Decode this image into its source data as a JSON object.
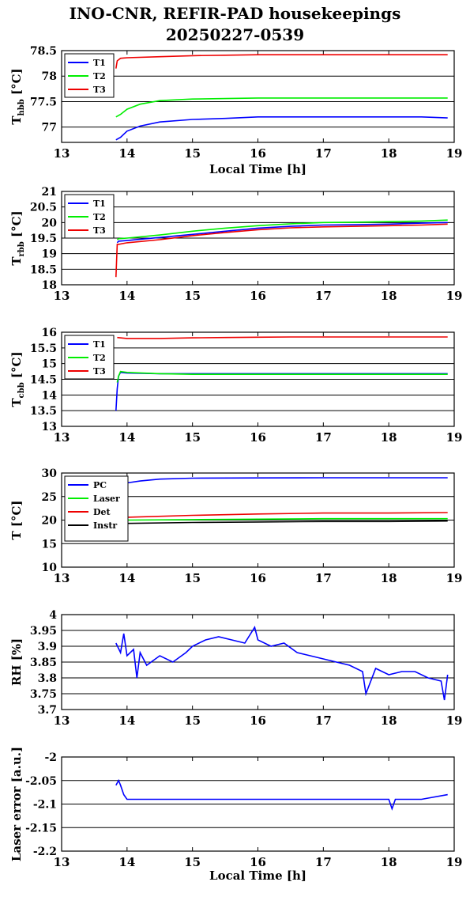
{
  "title_line1": "INO-CNR, REFIR-PAD housekeepings",
  "title_line2": "20250227-0539",
  "colors": {
    "blue": "#0000ff",
    "green": "#00ee00",
    "red": "#ee0000",
    "black": "#000000"
  },
  "chart_data": [
    {
      "type": "line",
      "ylabel": "T_hbb [°C]",
      "ylabel_main": "T",
      "ylabel_sub": "hbb",
      "ylabel_tail": " [°C]",
      "xlabel": "Local Time [h]",
      "xlim": [
        13,
        19
      ],
      "ylim": [
        76.7,
        78.5
      ],
      "xticks": [
        13,
        14,
        15,
        16,
        17,
        18,
        19
      ],
      "xtick_labels": [
        "13",
        "14",
        "15",
        "16",
        "17",
        "18",
        "19"
      ],
      "yticks": [
        77,
        77.5,
        78,
        78.5
      ],
      "ytick_labels": [
        "77",
        "77.5",
        "78",
        "78.5"
      ],
      "grid": true,
      "legend": "top-left",
      "series": [
        {
          "name": "T1",
          "color": "#0000ff",
          "x": [
            13.83,
            13.9,
            14.0,
            14.2,
            14.5,
            15.0,
            15.5,
            16.0,
            16.5,
            17.0,
            17.5,
            18.0,
            18.5,
            18.9
          ],
          "y": [
            76.75,
            76.8,
            76.92,
            77.02,
            77.1,
            77.15,
            77.17,
            77.2,
            77.2,
            77.2,
            77.2,
            77.2,
            77.2,
            77.18
          ]
        },
        {
          "name": "T2",
          "color": "#00ee00",
          "x": [
            13.83,
            13.9,
            14.0,
            14.2,
            14.5,
            15.0,
            15.5,
            16.0,
            16.5,
            17.0,
            17.5,
            18.0,
            18.5,
            18.9
          ],
          "y": [
            77.2,
            77.25,
            77.35,
            77.45,
            77.52,
            77.55,
            77.56,
            77.57,
            77.57,
            77.57,
            77.57,
            77.57,
            77.57,
            77.57
          ]
        },
        {
          "name": "T3",
          "color": "#ee0000",
          "x": [
            13.83,
            13.85,
            13.9,
            14.0,
            14.5,
            15.0,
            15.5,
            16.0,
            16.5,
            17.0,
            17.5,
            18.0,
            18.5,
            18.9
          ],
          "y": [
            78.15,
            78.3,
            78.35,
            78.36,
            78.38,
            78.4,
            78.41,
            78.42,
            78.42,
            78.42,
            78.42,
            78.42,
            78.42,
            78.42
          ]
        }
      ]
    },
    {
      "type": "line",
      "ylabel": "T_rbb [°C]",
      "ylabel_main": "T",
      "ylabel_sub": "rbb",
      "ylabel_tail": " [°C]",
      "xlabel": "",
      "xlim": [
        13,
        19
      ],
      "ylim": [
        18,
        21
      ],
      "xticks": [
        13,
        14,
        15,
        16,
        17,
        18,
        19
      ],
      "xtick_labels": [
        "13",
        "14",
        "15",
        "16",
        "17",
        "18",
        "19"
      ],
      "yticks": [
        18,
        18.5,
        19,
        19.5,
        20,
        20.5,
        21
      ],
      "ytick_labels": [
        "18",
        "18.5",
        "19",
        "19.5",
        "20",
        "20.5",
        "21"
      ],
      "grid": true,
      "legend": "top-left",
      "series": [
        {
          "name": "T1",
          "color": "#0000ff",
          "x": [
            13.85,
            13.87,
            14.0,
            14.5,
            15.0,
            15.5,
            16.0,
            16.5,
            17.0,
            17.5,
            18.0,
            18.5,
            18.9
          ],
          "y": [
            19.35,
            19.4,
            19.42,
            19.52,
            19.62,
            19.72,
            19.82,
            19.88,
            19.92,
            19.93,
            19.95,
            19.98,
            20.0
          ]
        },
        {
          "name": "T2",
          "color": "#00ee00",
          "x": [
            13.85,
            13.87,
            14.0,
            14.5,
            15.0,
            15.5,
            16.0,
            16.5,
            17.0,
            17.5,
            18.0,
            18.5,
            18.9
          ],
          "y": [
            19.45,
            19.48,
            19.5,
            19.6,
            19.72,
            19.82,
            19.9,
            19.96,
            20.0,
            20.01,
            20.03,
            20.05,
            20.08
          ]
        },
        {
          "name": "T3",
          "color": "#ee0000",
          "x": [
            13.83,
            13.85,
            13.87,
            14.0,
            14.5,
            15.0,
            15.5,
            16.0,
            16.5,
            17.0,
            17.5,
            18.0,
            18.5,
            18.9
          ],
          "y": [
            18.25,
            19.3,
            19.3,
            19.35,
            19.45,
            19.58,
            19.68,
            19.77,
            19.83,
            19.86,
            19.88,
            19.9,
            19.92,
            19.95
          ]
        }
      ]
    },
    {
      "type": "line",
      "ylabel": "T_cbb [°C]",
      "ylabel_main": "T",
      "ylabel_sub": "cbb",
      "ylabel_tail": " [°C]",
      "xlabel": "",
      "xlim": [
        13,
        19
      ],
      "ylim": [
        13,
        16
      ],
      "xticks": [
        13,
        14,
        15,
        16,
        17,
        18,
        19
      ],
      "xtick_labels": [
        "13",
        "14",
        "15",
        "16",
        "17",
        "18",
        "19"
      ],
      "yticks": [
        13,
        13.5,
        14,
        14.5,
        15,
        15.5,
        16
      ],
      "ytick_labels": [
        "13",
        "13.5",
        "14",
        "14.5",
        "15",
        "15.5",
        "16"
      ],
      "grid": true,
      "legend": "top-left",
      "series": [
        {
          "name": "T1",
          "color": "#0000ff",
          "x": [
            13.83,
            13.85,
            13.87,
            13.9,
            14.0,
            14.5,
            15.0,
            15.5,
            16.0,
            16.5,
            17.0,
            17.5,
            18.0,
            18.5,
            18.9
          ],
          "y": [
            13.5,
            14.2,
            14.6,
            14.72,
            14.7,
            14.68,
            14.68,
            14.68,
            14.68,
            14.68,
            14.68,
            14.68,
            14.68,
            14.68,
            14.68
          ]
        },
        {
          "name": "T2",
          "color": "#00ee00",
          "x": [
            13.85,
            13.87,
            13.9,
            14.0,
            14.5,
            15.0,
            15.5,
            16.0,
            16.5,
            17.0,
            17.5,
            18.0,
            18.5,
            18.9
          ],
          "y": [
            14.4,
            14.6,
            14.75,
            14.72,
            14.68,
            14.66,
            14.66,
            14.66,
            14.66,
            14.66,
            14.66,
            14.66,
            14.66,
            14.66
          ]
        },
        {
          "name": "T3",
          "color": "#ee0000",
          "x": [
            13.85,
            14.0,
            14.5,
            15.0,
            15.5,
            16.0,
            16.5,
            17.0,
            17.5,
            18.0,
            18.5,
            18.9
          ],
          "y": [
            15.83,
            15.8,
            15.8,
            15.82,
            15.83,
            15.84,
            15.85,
            15.85,
            15.85,
            15.85,
            15.85,
            15.85
          ]
        }
      ]
    },
    {
      "type": "line",
      "ylabel": "T [°C]",
      "ylabel_main": "T [°C]",
      "ylabel_sub": "",
      "ylabel_tail": "",
      "xlabel": "",
      "xlim": [
        13,
        19
      ],
      "ylim": [
        10,
        30
      ],
      "xticks": [
        13,
        14,
        15,
        16,
        17,
        18,
        19
      ],
      "xtick_labels": [
        "13",
        "14",
        "15",
        "16",
        "17",
        "18",
        "19"
      ],
      "yticks": [
        10,
        15,
        20,
        25,
        30
      ],
      "ytick_labels": [
        "10",
        "15",
        "20",
        "25",
        "30"
      ],
      "grid": true,
      "legend": "top-left",
      "series": [
        {
          "name": "PC",
          "color": "#0000ff",
          "x": [
            13.83,
            14.0,
            14.2,
            14.5,
            15.0,
            16.0,
            17.0,
            18.0,
            18.9
          ],
          "y": [
            27.4,
            27.9,
            28.3,
            28.7,
            28.9,
            28.95,
            29.0,
            29.0,
            29.0
          ]
        },
        {
          "name": "Laser",
          "color": "#00ee00",
          "x": [
            13.83,
            14.0,
            15.0,
            16.0,
            17.0,
            18.0,
            18.9
          ],
          "y": [
            20.0,
            20.0,
            20.1,
            20.2,
            20.3,
            20.3,
            20.3
          ]
        },
        {
          "name": "Det",
          "color": "#ee0000",
          "x": [
            13.83,
            14.0,
            15.0,
            16.0,
            17.0,
            18.0,
            18.9
          ],
          "y": [
            20.5,
            20.6,
            21.0,
            21.3,
            21.5,
            21.5,
            21.6
          ]
        },
        {
          "name": "Instr",
          "color": "#000000",
          "x": [
            13.83,
            14.0,
            15.0,
            16.0,
            17.0,
            18.0,
            18.9
          ],
          "y": [
            19.3,
            19.3,
            19.5,
            19.6,
            19.7,
            19.7,
            19.8
          ]
        }
      ]
    },
    {
      "type": "line",
      "ylabel": "RH [%]",
      "ylabel_main": "RH [%]",
      "ylabel_sub": "",
      "ylabel_tail": "",
      "xlabel": "",
      "xlim": [
        13,
        19
      ],
      "ylim": [
        3.7,
        4
      ],
      "xticks": [
        13,
        14,
        15,
        16,
        17,
        18,
        19
      ],
      "xtick_labels": [
        "13",
        "14",
        "15",
        "16",
        "17",
        "18",
        "19"
      ],
      "yticks": [
        3.7,
        3.75,
        3.8,
        3.85,
        3.9,
        3.95,
        4
      ],
      "ytick_labels": [
        "3.7",
        "3.75",
        "3.8",
        "3.85",
        "3.9",
        "3.95",
        "4"
      ],
      "grid": true,
      "legend": "none",
      "series": [
        {
          "name": "",
          "color": "#0000ff",
          "x": [
            13.83,
            13.9,
            13.95,
            14.0,
            14.1,
            14.15,
            14.2,
            14.3,
            14.5,
            14.7,
            14.9,
            15.0,
            15.2,
            15.4,
            15.6,
            15.8,
            15.95,
            16.0,
            16.2,
            16.4,
            16.6,
            16.8,
            17.0,
            17.2,
            17.4,
            17.6,
            17.65,
            17.8,
            18.0,
            18.2,
            18.4,
            18.6,
            18.8,
            18.85,
            18.9
          ],
          "y": [
            3.91,
            3.88,
            3.94,
            3.87,
            3.89,
            3.8,
            3.88,
            3.84,
            3.87,
            3.85,
            3.88,
            3.9,
            3.92,
            3.93,
            3.92,
            3.91,
            3.96,
            3.92,
            3.9,
            3.91,
            3.88,
            3.87,
            3.86,
            3.85,
            3.84,
            3.82,
            3.75,
            3.83,
            3.81,
            3.82,
            3.82,
            3.8,
            3.79,
            3.73,
            3.81
          ]
        }
      ]
    },
    {
      "type": "line",
      "ylabel": "Laser error [a.u.]",
      "ylabel_main": "Laser error [a.u.]",
      "ylabel_sub": "",
      "ylabel_tail": "",
      "xlabel": "Local Time [h]",
      "xlim": [
        13,
        19
      ],
      "ylim": [
        -2.2,
        -2
      ],
      "xticks": [
        13,
        14,
        15,
        16,
        17,
        18,
        19
      ],
      "xtick_labels": [
        "13",
        "14",
        "15",
        "16",
        "17",
        "18",
        "19"
      ],
      "yticks": [
        -2.2,
        -2.15,
        -2.1,
        -2.05,
        -2
      ],
      "ytick_labels": [
        "-2.2",
        "-2.15",
        "-2.1",
        "-2.05",
        "-2"
      ],
      "grid": true,
      "legend": "none",
      "series": [
        {
          "name": "",
          "color": "#0000ff",
          "x": [
            13.83,
            13.87,
            13.9,
            13.95,
            14.0,
            14.1,
            14.5,
            15.0,
            15.5,
            16.0,
            16.5,
            17.0,
            17.5,
            18.0,
            18.05,
            18.1,
            18.5,
            18.9
          ],
          "y": [
            -2.06,
            -2.05,
            -2.06,
            -2.08,
            -2.09,
            -2.09,
            -2.09,
            -2.09,
            -2.09,
            -2.09,
            -2.09,
            -2.09,
            -2.09,
            -2.09,
            -2.11,
            -2.09,
            -2.09,
            -2.08
          ]
        }
      ]
    }
  ]
}
